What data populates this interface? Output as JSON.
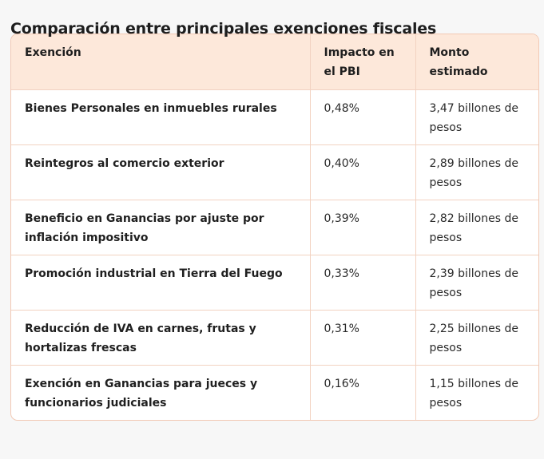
{
  "title": "Comparación entre principales exenciones fiscales",
  "table": {
    "headers": [
      "Exención",
      "Impacto en el PBI",
      "Monto estimado"
    ],
    "rows": [
      [
        "Bienes Personales en inmuebles rurales",
        "0,48%",
        "3,47 billones de pesos"
      ],
      [
        "Reintegros al comercio exterior",
        "0,40%",
        "2,89 billones de pesos"
      ],
      [
        "Beneficio en Ganancias por ajuste por inflación impositivo",
        "0,39%",
        "2,82 billones de pesos"
      ],
      [
        "Promoción industrial en Tierra del Fuego",
        "0,33%",
        "2,39 billones de pesos"
      ],
      [
        "Reducción de IVA en carnes, frutas y hortalizas frescas",
        "0,31%",
        "2,25 billones de pesos"
      ],
      [
        "Exención en Ganancias para jueces y funcionarios judiciales",
        "0,16%",
        "1,15 billones de pesos"
      ]
    ]
  }
}
